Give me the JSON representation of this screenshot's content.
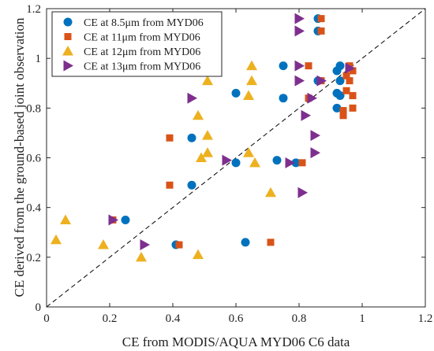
{
  "chart_data": {
    "type": "scatter",
    "xlabel": "CE from MODIS/AQUA MYD06 C6 data",
    "ylabel": "CE derived from the ground-based joint observation",
    "xlim": [
      0,
      1.2
    ],
    "ylim": [
      0,
      1.2
    ],
    "x_ticks": [
      "0",
      "0.2",
      "0.4",
      "0.6",
      "0.8",
      "1",
      "1.2"
    ],
    "y_ticks": [
      "0",
      "0.2",
      "0.4",
      "0.6",
      "0.8",
      "1",
      "1.2"
    ],
    "x_tick_values": [
      0,
      0.2,
      0.4,
      0.6,
      0.8,
      1,
      1.2
    ],
    "y_tick_values": [
      0,
      0.2,
      0.4,
      0.6,
      0.8,
      1,
      1.2
    ],
    "grid": false,
    "legend_position": "top-left",
    "reference_line": {
      "type": "diagonal",
      "style": "dashed",
      "color": "#000000"
    },
    "series": [
      {
        "name": "CE at 8.5μm from MYD06",
        "marker": "circle",
        "color": "#0072BD",
        "points": [
          [
            0.25,
            0.35
          ],
          [
            0.41,
            0.25
          ],
          [
            0.46,
            0.49
          ],
          [
            0.46,
            0.68
          ],
          [
            0.6,
            0.58
          ],
          [
            0.6,
            0.86
          ],
          [
            0.63,
            0.26
          ],
          [
            0.73,
            0.59
          ],
          [
            0.75,
            0.84
          ],
          [
            0.75,
            0.97
          ],
          [
            0.79,
            0.58
          ],
          [
            0.86,
            1.16
          ],
          [
            0.86,
            1.11
          ],
          [
            0.86,
            0.91
          ],
          [
            0.92,
            0.8
          ],
          [
            0.92,
            0.86
          ],
          [
            0.92,
            0.95
          ],
          [
            0.93,
            0.91
          ],
          [
            0.93,
            0.97
          ],
          [
            0.93,
            0.85
          ]
        ]
      },
      {
        "name": "CE at 11μm from MYD06",
        "marker": "square",
        "color": "#D95319",
        "points": [
          [
            0.21,
            0.35
          ],
          [
            0.39,
            0.49
          ],
          [
            0.39,
            0.68
          ],
          [
            0.42,
            0.25
          ],
          [
            0.71,
            0.26
          ],
          [
            0.81,
            0.58
          ],
          [
            0.83,
            0.97
          ],
          [
            0.83,
            0.84
          ],
          [
            0.87,
            1.16
          ],
          [
            0.87,
            1.11
          ],
          [
            0.87,
            0.91
          ],
          [
            0.94,
            0.79
          ],
          [
            0.94,
            0.77
          ],
          [
            0.95,
            0.93
          ],
          [
            0.96,
            0.91
          ],
          [
            0.96,
            0.97
          ],
          [
            0.97,
            0.95
          ],
          [
            0.97,
            0.85
          ],
          [
            0.97,
            0.8
          ],
          [
            0.95,
            0.87
          ]
        ]
      },
      {
        "name": "CE at 12μm from MYD06",
        "marker": "triangle",
        "color": "#EDB120",
        "points": [
          [
            0.03,
            0.27
          ],
          [
            0.06,
            0.35
          ],
          [
            0.18,
            0.25
          ],
          [
            0.3,
            0.2
          ],
          [
            0.48,
            0.21
          ],
          [
            0.48,
            0.77
          ],
          [
            0.49,
            0.6
          ],
          [
            0.51,
            0.62
          ],
          [
            0.51,
            0.69
          ],
          [
            0.51,
            0.91
          ],
          [
            0.64,
            0.62
          ],
          [
            0.64,
            0.85
          ],
          [
            0.65,
            0.97
          ],
          [
            0.65,
            0.91
          ],
          [
            0.66,
            0.58
          ],
          [
            0.71,
            0.46
          ]
        ]
      },
      {
        "name": "CE at 13μm from MYD06",
        "marker": "triangle-right",
        "color": "#7E2F8E",
        "points": [
          [
            0.21,
            0.35
          ],
          [
            0.31,
            0.25
          ],
          [
            0.46,
            0.84
          ],
          [
            0.57,
            0.59
          ],
          [
            0.77,
            0.58
          ],
          [
            0.8,
            0.91
          ],
          [
            0.8,
            0.97
          ],
          [
            0.8,
            1.11
          ],
          [
            0.8,
            1.16
          ],
          [
            0.81,
            0.46
          ],
          [
            0.82,
            0.77
          ],
          [
            0.84,
            0.84
          ],
          [
            0.85,
            0.62
          ],
          [
            0.85,
            0.69
          ],
          [
            0.87,
            0.91
          ],
          [
            0.96,
            0.96
          ]
        ]
      }
    ]
  }
}
